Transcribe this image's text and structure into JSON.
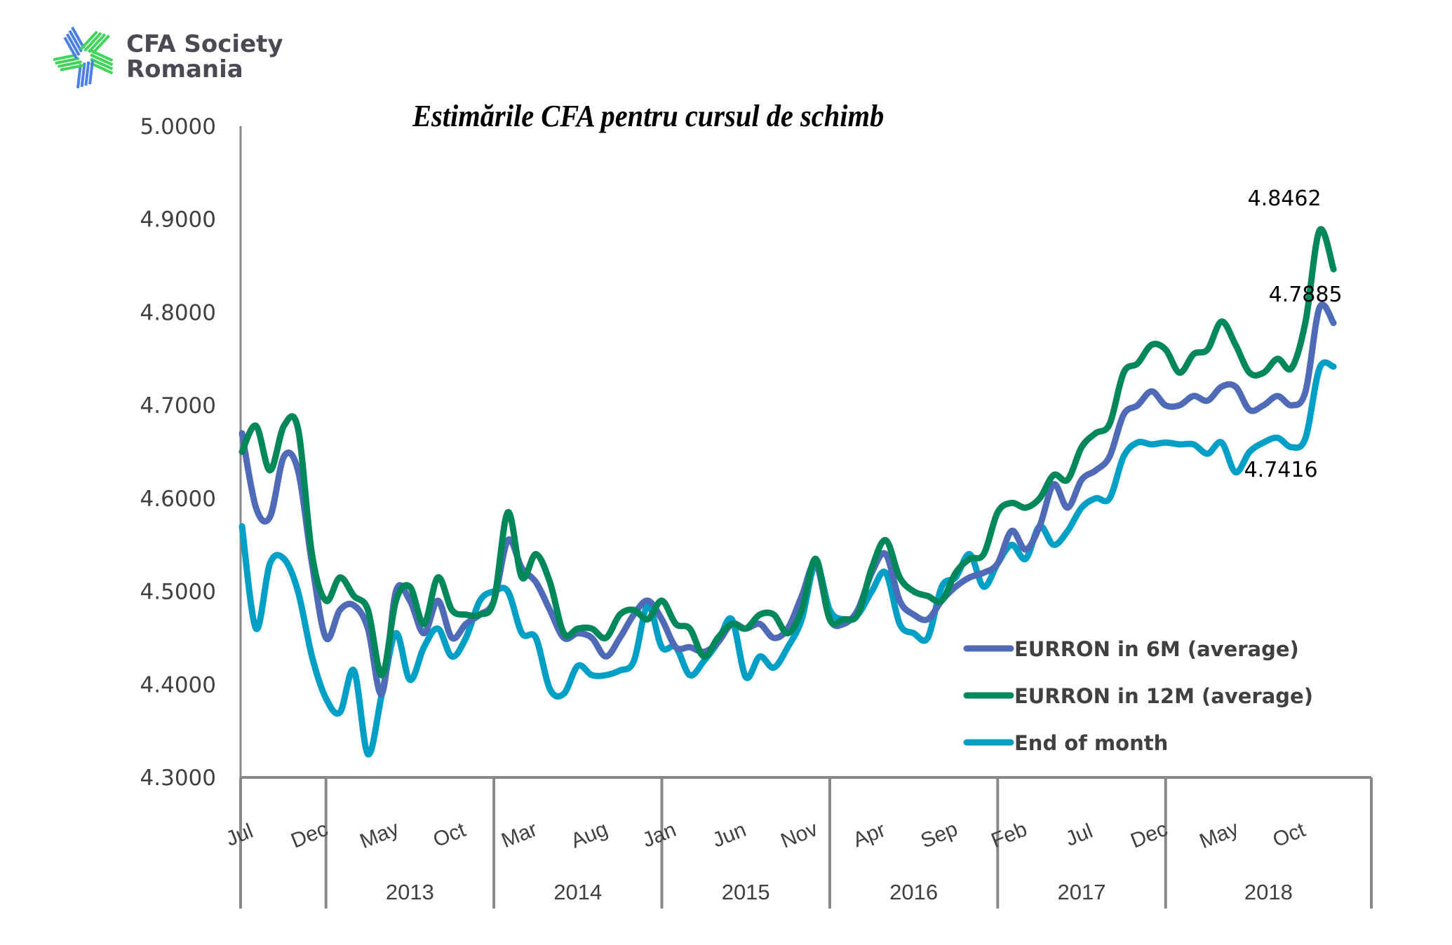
{
  "logo": {
    "line1": "CFA Society",
    "line2": "Romania"
  },
  "chart_data": {
    "type": "line",
    "title": "Estimările CFA pentru cursul de schimb",
    "xlabel": "",
    "ylabel": "",
    "ylim": [
      4.3,
      5.0
    ],
    "yticks": [
      "5.0000",
      "4.9000",
      "4.8000",
      "4.7000",
      "4.6000",
      "4.5000",
      "4.4000",
      "4.3000"
    ],
    "ytick_values": [
      5.0,
      4.9,
      4.8,
      4.7,
      4.6,
      4.5,
      4.4,
      4.3
    ],
    "grid": false,
    "legend_position": "bottom-right",
    "x_month_labels": [
      {
        "index": 0,
        "label": "Jul"
      },
      {
        "index": 5,
        "label": "Dec"
      },
      {
        "index": 10,
        "label": "May"
      },
      {
        "index": 15,
        "label": "Oct"
      },
      {
        "index": 20,
        "label": "Mar"
      },
      {
        "index": 25,
        "label": "Aug"
      },
      {
        "index": 30,
        "label": "Jan"
      },
      {
        "index": 35,
        "label": "Jun"
      },
      {
        "index": 40,
        "label": "Nov"
      },
      {
        "index": 45,
        "label": "Apr"
      },
      {
        "index": 50,
        "label": "Sep"
      },
      {
        "index": 55,
        "label": "Feb"
      },
      {
        "index": 60,
        "label": "Jul"
      },
      {
        "index": 65,
        "label": "Dec"
      },
      {
        "index": 70,
        "label": "May"
      },
      {
        "index": 75,
        "label": "Oct"
      }
    ],
    "year_groups": [
      {
        "label": "",
        "start": 0,
        "end": 5
      },
      {
        "label": "2013",
        "start": 6,
        "end": 17
      },
      {
        "label": "2014",
        "start": 18,
        "end": 29
      },
      {
        "label": "2015",
        "start": 30,
        "end": 41
      },
      {
        "label": "2016",
        "start": 42,
        "end": 53
      },
      {
        "label": "2017",
        "start": 54,
        "end": 65
      },
      {
        "label": "2018",
        "start": 66,
        "end": 78
      }
    ],
    "series": [
      {
        "name": "EURRON in 6M (average)",
        "color": "#4f6bb8",
        "values": [
          4.67,
          4.59,
          4.58,
          4.645,
          4.63,
          4.53,
          4.45,
          4.48,
          4.485,
          4.46,
          4.39,
          4.5,
          4.49,
          4.455,
          4.49,
          4.45,
          4.465,
          4.475,
          4.49,
          4.555,
          4.525,
          4.51,
          4.48,
          4.45,
          4.455,
          4.45,
          4.43,
          4.45,
          4.475,
          4.49,
          4.47,
          4.44,
          4.44,
          4.435,
          4.445,
          4.465,
          4.46,
          4.465,
          4.45,
          4.46,
          4.495,
          4.53,
          4.47,
          4.465,
          4.48,
          4.52,
          4.54,
          4.49,
          4.475,
          4.47,
          4.49,
          4.505,
          4.515,
          4.52,
          4.53,
          4.565,
          4.545,
          4.57,
          4.615,
          4.59,
          4.62,
          4.63,
          4.645,
          4.69,
          4.7,
          4.715,
          4.7,
          4.7,
          4.71,
          4.705,
          4.72,
          4.72,
          4.695,
          4.7,
          4.71,
          4.7,
          4.715,
          4.805,
          4.7885
        ],
        "end_label": "4.7885"
      },
      {
        "name": "EURRON in 12M (average)",
        "color": "#00875a",
        "values": [
          4.65,
          4.678,
          4.63,
          4.678,
          4.675,
          4.54,
          4.49,
          4.515,
          4.495,
          4.48,
          4.41,
          4.49,
          4.505,
          4.465,
          4.515,
          4.48,
          4.475,
          4.475,
          4.49,
          4.585,
          4.515,
          4.54,
          4.51,
          4.455,
          4.46,
          4.46,
          4.45,
          4.475,
          4.48,
          4.47,
          4.49,
          4.465,
          4.46,
          4.43,
          4.45,
          4.465,
          4.46,
          4.475,
          4.475,
          4.455,
          4.48,
          4.535,
          4.47,
          4.47,
          4.475,
          4.525,
          4.555,
          4.515,
          4.5,
          4.495,
          4.49,
          4.52,
          4.535,
          4.54,
          4.585,
          4.595,
          4.59,
          4.6,
          4.625,
          4.62,
          4.655,
          4.67,
          4.68,
          4.735,
          4.745,
          4.765,
          4.76,
          4.735,
          4.755,
          4.76,
          4.79,
          4.765,
          4.735,
          4.735,
          4.75,
          4.74,
          4.79,
          4.888,
          4.8462
        ],
        "end_label": "4.8462"
      },
      {
        "name": "End of month",
        "color": "#00a0c6",
        "values": [
          4.57,
          4.46,
          4.53,
          4.535,
          4.5,
          4.43,
          4.385,
          4.37,
          4.415,
          4.325,
          4.39,
          4.455,
          4.405,
          4.44,
          4.46,
          4.43,
          4.45,
          4.49,
          4.5,
          4.5,
          4.455,
          4.45,
          4.395,
          4.39,
          4.42,
          4.41,
          4.41,
          4.415,
          4.425,
          4.485,
          4.44,
          4.44,
          4.41,
          4.425,
          4.445,
          4.47,
          4.408,
          4.43,
          4.418,
          4.44,
          4.47,
          4.53,
          4.48,
          4.47,
          4.475,
          4.5,
          4.52,
          4.465,
          4.455,
          4.45,
          4.505,
          4.515,
          4.54,
          4.505,
          4.53,
          4.55,
          4.535,
          4.57,
          4.55,
          4.565,
          4.59,
          4.6,
          4.6,
          4.645,
          4.66,
          4.658,
          4.66,
          4.658,
          4.658,
          4.648,
          4.66,
          4.628,
          4.65,
          4.66,
          4.665,
          4.655,
          4.665,
          4.74,
          4.7416
        ],
        "end_label": "4.7416"
      }
    ]
  }
}
